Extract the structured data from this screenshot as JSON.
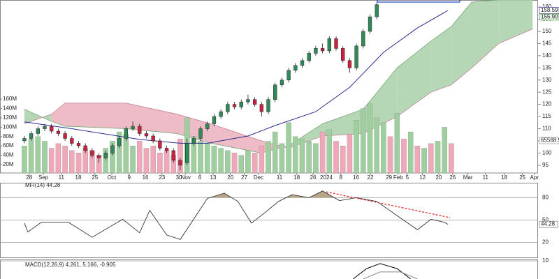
{
  "chart_data": [
    {
      "type": "candlestick",
      "x": [
        0,
        2,
        4,
        6,
        8,
        10,
        12,
        14,
        16,
        18,
        20,
        22,
        24,
        26,
        28,
        30,
        32,
        34,
        36,
        38,
        40,
        42,
        44,
        46,
        48,
        50,
        52,
        54,
        56,
        58,
        60,
        62,
        64,
        66,
        68,
        70,
        72,
        74,
        76,
        78,
        80,
        82,
        84,
        86,
        88,
        90,
        92,
        94,
        96,
        98,
        100,
        102,
        104
      ],
      "open": [
        105,
        106,
        108,
        110,
        111,
        109,
        108,
        106,
        104,
        103,
        101,
        99,
        98,
        100,
        103,
        106,
        110,
        111,
        108,
        107,
        105,
        102,
        101,
        97,
        96,
        104,
        106,
        110,
        112,
        115,
        117,
        120,
        119,
        121,
        122,
        120,
        117,
        122,
        128,
        130,
        134,
        136,
        138,
        141,
        143,
        142,
        147,
        143,
        138,
        135,
        144,
        150,
        156
      ],
      "high": [
        107,
        109,
        111,
        112,
        112,
        110,
        109,
        107,
        105,
        104,
        102,
        100,
        101,
        104,
        107,
        111,
        113,
        112,
        109,
        108,
        106,
        103,
        102,
        98,
        106,
        107,
        111,
        113,
        116,
        118,
        121,
        121,
        122,
        124,
        123,
        121,
        123,
        129,
        131,
        135,
        137,
        139,
        142,
        144,
        145,
        148,
        148,
        144,
        139,
        145,
        151,
        157,
        162
      ],
      "low": [
        104,
        105,
        107,
        109,
        108,
        107,
        105,
        103,
        102,
        100,
        98,
        96,
        97,
        99,
        102,
        105,
        109,
        107,
        106,
        104,
        101,
        100,
        96,
        93,
        95,
        103,
        105,
        109,
        111,
        114,
        116,
        118,
        118,
        120,
        119,
        115,
        116,
        121,
        127,
        129,
        133,
        135,
        137,
        140,
        141,
        141,
        142,
        137,
        133,
        134,
        143,
        149,
        155
      ],
      "close": [
        106,
        108,
        110,
        111,
        109,
        108,
        106,
        104,
        103,
        101,
        99,
        98,
        100,
        103,
        106,
        110,
        111,
        108,
        107,
        105,
        102,
        101,
        97,
        95,
        104,
        106,
        110,
        112,
        115,
        117,
        120,
        119,
        121,
        122,
        120,
        117,
        122,
        128,
        130,
        134,
        136,
        138,
        141,
        143,
        142,
        147,
        143,
        138,
        135,
        144,
        150,
        156,
        161
      ],
      "up_color": "#2e8b57",
      "down_color": "#d02040",
      "xlim": [
        -7.2,
        151.6
      ],
      "ylim": [
        91.8,
        162.9
      ],
      "yticks": [
        95,
        100,
        105,
        110,
        115,
        120,
        125,
        130,
        135,
        140,
        145,
        150,
        155,
        160
      ],
      "xticks": [
        {
          "value": 1.4,
          "label": "28"
        },
        {
          "value": 5.6,
          "label": "Sep"
        },
        {
          "value": 10.9,
          "label": "11"
        },
        {
          "value": 15.9,
          "label": "18"
        },
        {
          "value": 20.8,
          "label": "25"
        },
        {
          "value": 25.8,
          "label": "Oct"
        },
        {
          "value": 30.9,
          "label": "9"
        },
        {
          "value": 35.7,
          "label": "16"
        },
        {
          "value": 40.6,
          "label": "23"
        },
        {
          "value": 45.6,
          "label": "30"
        },
        {
          "value": 47.6,
          "label": "Nov"
        },
        {
          "value": 51.8,
          "label": "6"
        },
        {
          "value": 55.7,
          "label": "13"
        },
        {
          "value": 60.8,
          "label": "20"
        },
        {
          "value": 64.9,
          "label": "27"
        },
        {
          "value": 69.1,
          "label": "Dec"
        },
        {
          "value": 75.3,
          "label": "11"
        },
        {
          "value": 80.4,
          "label": "18"
        },
        {
          "value": 85.2,
          "label": "26"
        },
        {
          "value": 89.1,
          "label": "2024"
        },
        {
          "value": 93.4,
          "label": "8"
        },
        {
          "value": 97.9,
          "label": "16"
        },
        {
          "value": 102.1,
          "label": "22"
        },
        {
          "value": 107.6,
          "label": "29"
        },
        {
          "value": 110.3,
          "label": "Feb"
        },
        {
          "value": 113,
          "label": "5"
        },
        {
          "value": 117.5,
          "label": "12"
        },
        {
          "value": 122.3,
          "label": "20"
        },
        {
          "value": 126.4,
          "label": "26"
        },
        {
          "value": 130.9,
          "label": "Mar"
        },
        {
          "value": 136.1,
          "label": "11"
        },
        {
          "value": 141.6,
          "label": "18"
        },
        {
          "value": 147,
          "label": "25"
        },
        {
          "value": 150.5,
          "label": "Apr"
        }
      ],
      "price_labels": [
        158.59,
        {
          "value": 155.9,
          "label": "155.90"
        }
      ],
      "sma": {
        "color": "#2a2a90",
        "x": [
          0,
          14,
          34,
          46,
          54,
          66,
          74,
          86,
          96,
          106,
          116,
          125
        ],
        "values": [
          112.8,
          110,
          105.6,
          104,
          104,
          107,
          111.3,
          117,
          127,
          141.4,
          151.4,
          158.6
        ]
      },
      "cloud": {
        "up_color": "#a8d0a8",
        "down_color": "#eab0bc",
        "x": [
          0,
          8,
          12,
          30,
          45,
          55,
          70,
          78,
          88,
          100,
          110,
          120,
          126,
          132,
          140,
          150
        ],
        "span_a": [
          118,
          113,
          111,
          110,
          108,
          104,
          100,
          103,
          112,
          118,
          135,
          146,
          152,
          162,
          163,
          163
        ],
        "span_b": [
          112,
          116,
          120.5,
          120.5,
          116,
          112,
          105,
          102,
          107,
          108,
          115,
          125,
          128,
          135,
          145,
          151
        ]
      },
      "volume": {
        "x": [
          0,
          2,
          4,
          6,
          8,
          10,
          12,
          14,
          16,
          18,
          20,
          22,
          24,
          26,
          28,
          30,
          32,
          34,
          36,
          38,
          40,
          42,
          44,
          46,
          48,
          50,
          52,
          54,
          56,
          58,
          60,
          62,
          64,
          66,
          68,
          70,
          72,
          74,
          76,
          78,
          80,
          82,
          84,
          86,
          88,
          90,
          92,
          94,
          96,
          98,
          100,
          102,
          104,
          106,
          108,
          110,
          112,
          114,
          116,
          118,
          120,
          122,
          124,
          126
        ],
        "values": [
          60,
          75,
          80,
          70,
          55,
          65,
          60,
          50,
          45,
          55,
          50,
          40,
          55,
          70,
          90,
          85,
          60,
          70,
          55,
          60,
          45,
          50,
          40,
          75,
          120,
          80,
          70,
          65,
          60,
          55,
          50,
          45,
          40,
          50,
          45,
          60,
          70,
          90,
          65,
          110,
          80,
          75,
          70,
          65,
          90,
          95,
          70,
          60,
          85,
          115,
          140,
          150,
          120,
          110,
          80,
          130,
          75,
          90,
          60,
          55,
          65,
          70,
          100,
          65
        ],
        "colors": [
          "#9fcf9f",
          "#9fcf9f",
          "#9fcf9f",
          "#9fcf9f",
          "#f0a8b8",
          "#f0a8b8",
          "#f0a8b8",
          "#f0a8b8",
          "#f0a8b8",
          "#f0a8b8",
          "#f0a8b8",
          "#f0a8b8",
          "#9fcf9f",
          "#9fcf9f",
          "#9fcf9f",
          "#9fcf9f",
          "#9fcf9f",
          "#f0a8b8",
          "#f0a8b8",
          "#f0a8b8",
          "#f0a8b8",
          "#f0a8b8",
          "#f0a8b8",
          "#f0a8b8",
          "#9fcf9f",
          "#9fcf9f",
          "#9fcf9f",
          "#9fcf9f",
          "#9fcf9f",
          "#9fcf9f",
          "#9fcf9f",
          "#f0a8b8",
          "#9fcf9f",
          "#9fcf9f",
          "#f0a8b8",
          "#f0a8b8",
          "#9fcf9f",
          "#9fcf9f",
          "#9fcf9f",
          "#9fcf9f",
          "#9fcf9f",
          "#9fcf9f",
          "#9fcf9f",
          "#9fcf9f",
          "#f0a8b8",
          "#9fcf9f",
          "#f0a8b8",
          "#f0a8b8",
          "#f0a8b8",
          "#9fcf9f",
          "#9fcf9f",
          "#9fcf9f",
          "#9fcf9f",
          "#9fcf9f",
          "#f0a8b8",
          "#9fcf9f",
          "#f0a8b8",
          "#9fcf9f",
          "#f0a8b8",
          "#9fcf9f",
          "#f0a8b8",
          "#9fcf9f",
          "#9fcf9f",
          "#f0a8b8"
        ],
        "ylim": [
          2,
          372
        ],
        "yticks": [
          {
            "value": 20,
            "label": "20M"
          },
          {
            "value": 40,
            "label": "40M"
          },
          {
            "value": 60,
            "label": "60M"
          },
          {
            "value": 80,
            "label": "80M"
          },
          {
            "value": 100,
            "label": "100M"
          },
          {
            "value": 120,
            "label": "120M"
          },
          {
            "value": 140,
            "label": "140M"
          },
          {
            "value": 160,
            "label": "160M"
          }
        ],
        "last_label": "65568.9"
      }
    },
    {
      "type": "line",
      "title": "MFI(14) 44.28",
      "color": "#333333",
      "fill_color": "#b9a58a",
      "fill_above": 80,
      "x": [
        0,
        1,
        5,
        13,
        20,
        29,
        34,
        37,
        42,
        46,
        54,
        59,
        63,
        67,
        71,
        75,
        79,
        84,
        88,
        93,
        98,
        104,
        110,
        116,
        120,
        124,
        125
      ],
      "values": [
        46,
        34,
        47,
        47,
        27,
        51,
        33,
        63,
        30,
        24,
        79,
        86,
        75,
        46,
        60,
        75,
        84,
        80,
        89,
        76,
        80,
        75,
        56,
        37,
        51,
        47,
        44.28
      ],
      "ylim": [
        0,
        100
      ],
      "yticks": [
        20,
        50,
        80
      ],
      "last_value": 44.28
    },
    {
      "type": "line",
      "title": "MACD(12,26,9) 4.261, 5.166, -0.905",
      "ylim": [
        1.33,
        10.67
      ],
      "yticks": [
        10
      ],
      "series": [
        {
          "color": "#000000",
          "x": [
            97,
            101,
            105,
            110,
            114
          ],
          "values": [
            1.33,
            6.3,
            8.7,
            6.3,
            1.33
          ]
        },
        {
          "color": "#888888",
          "x": [
            100,
            105,
            111,
            116
          ],
          "values": [
            1.33,
            4.7,
            4.7,
            1.33
          ]
        }
      ]
    }
  ]
}
